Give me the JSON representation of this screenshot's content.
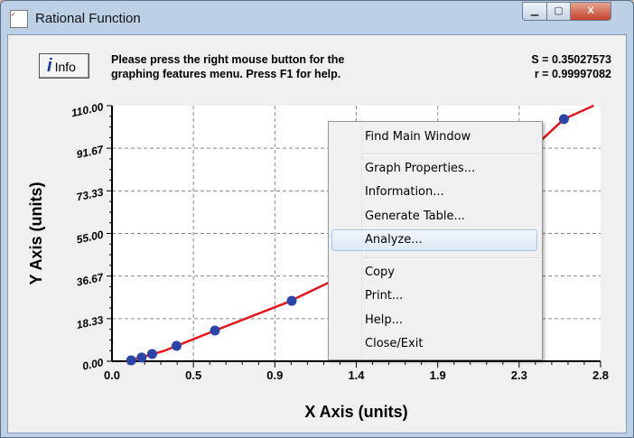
{
  "window": {
    "title": "Rational Function"
  },
  "header": {
    "info_label": "Info",
    "message_line1": "Please press the right mouse button for the",
    "message_line2": "graphing features menu.  Press F1 for help.",
    "s_value": "S = 0.35027573",
    "r_value": "r = 0.99997082"
  },
  "chart_data": {
    "type": "scatter",
    "xlabel": "X Axis (units)",
    "ylabel": "Y Axis (units)",
    "xlim": [
      0,
      2.8
    ],
    "ylim": [
      0,
      110
    ],
    "x_tick_labels": [
      "0.0",
      "0.5",
      "0.9",
      "1.4",
      "1.9",
      "2.3",
      "2.8"
    ],
    "y_tick_labels": [
      "0.00",
      "18.33",
      "36.67",
      "55.00",
      "73.33",
      "91.67",
      "110.00"
    ],
    "grid": true,
    "points": {
      "x": [
        0.11,
        0.17,
        0.23,
        0.37,
        0.59,
        1.03,
        2.59
      ],
      "y": [
        0.4,
        1.6,
        3.1,
        6.6,
        13.2,
        26.0,
        104.2
      ]
    },
    "fit_curve": {
      "x": [
        0.1,
        0.3,
        0.6,
        1.0,
        1.4,
        1.8,
        2.2,
        2.59,
        2.76
      ],
      "y": [
        0.2,
        4.5,
        13.5,
        25.2,
        39.5,
        56.5,
        77.0,
        104.2,
        110
      ]
    },
    "colors": {
      "points": "#2a44a8",
      "fit": "#e8141c",
      "grid": "#888888"
    }
  },
  "context_menu": {
    "items": [
      "Find Main Window",
      "Graph Properties...",
      "Information...",
      "Generate Table...",
      "Analyze...",
      "Copy",
      "Print...",
      "Help...",
      "Close/Exit"
    ],
    "highlighted": "Analyze..."
  }
}
